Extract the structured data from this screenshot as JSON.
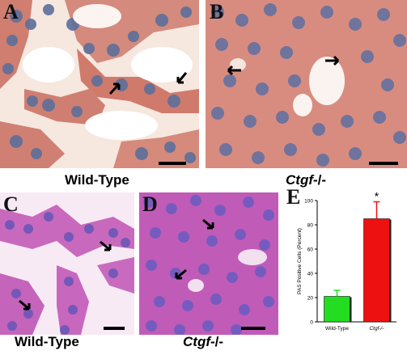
{
  "panels": {
    "a": {
      "letter": "A",
      "caption": "Wild-Type"
    },
    "b": {
      "letter": "B",
      "caption_prefix": "Ctgf",
      "caption_suffix": "-/-"
    },
    "c": {
      "letter": "C",
      "caption": "Wild-Type"
    },
    "d": {
      "letter": "D",
      "caption_prefix": "Ctgf",
      "caption_suffix": "-/-"
    },
    "e": {
      "letter": "E"
    }
  },
  "colors": {
    "he_background": "#f4e2d8",
    "he_tissue": "#c86a5e",
    "he_nuclei": "#5b6e9a",
    "pas_background": "#f3e4f0",
    "pas_tissue": "#c24fb8",
    "pas_nuclei": "#6a5ab8",
    "bar_wildtype": "#22dd22",
    "bar_ctgf": "#ee1111"
  },
  "chart_data": {
    "type": "bar",
    "categories": [
      "Wild-Type",
      "Ctgf-/-"
    ],
    "values": [
      21,
      85
    ],
    "errors": [
      5,
      14
    ],
    "ylabel": "PAS Positive Cells (Percent)",
    "ylim": [
      0,
      100
    ],
    "yticks": [
      0,
      20,
      40,
      60,
      80,
      100
    ],
    "significance_marker": "*",
    "colors": [
      "#22dd22",
      "#ee1111"
    ]
  }
}
